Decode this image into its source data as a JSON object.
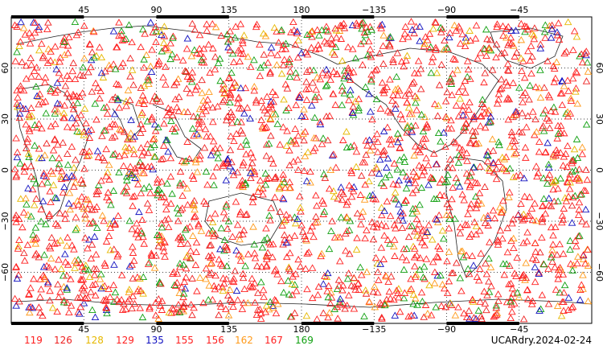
{
  "chart_data": {
    "type": "scatter",
    "projection": "cylindrical",
    "x_ticks_top": [
      "45",
      "90",
      "135",
      "180",
      "−135",
      "−90",
      "−45"
    ],
    "x_ticks_bottom": [
      "45",
      "90",
      "135",
      "180",
      "−135",
      "−90",
      "−45"
    ],
    "y_ticks": [
      "60",
      "30",
      "0",
      "−30",
      "−60"
    ],
    "xlim": [
      0,
      360
    ],
    "ylim": [
      -90,
      90
    ],
    "grid": true,
    "marker": "triangle",
    "series": [
      {
        "name": "119",
        "color": "#ff2020"
      },
      {
        "name": "126",
        "color": "#ee2020"
      },
      {
        "name": "128",
        "color": "#e6b800"
      },
      {
        "name": "129",
        "color": "#ff2020"
      },
      {
        "name": "135",
        "color": "#1010c0"
      },
      {
        "name": "155",
        "color": "#ff2020"
      },
      {
        "name": "156",
        "color": "#ff2020"
      },
      {
        "name": "162",
        "color": "#ff9a1a"
      },
      {
        "name": "167",
        "color": "#ff2020"
      },
      {
        "name": "169",
        "color": "#10a010"
      }
    ]
  },
  "product_label": "UCARdry.2024-02-24"
}
